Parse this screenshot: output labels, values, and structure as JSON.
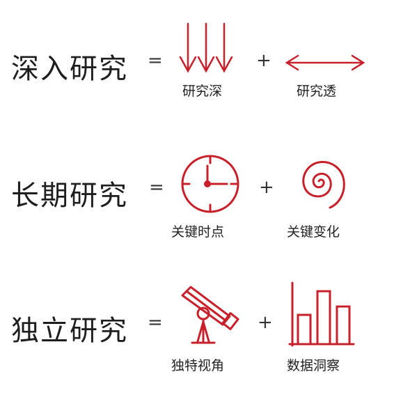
{
  "accent_color": "#c8202a",
  "rows": [
    {
      "term": "深入研究",
      "equals": "=",
      "plus": "+",
      "left": {
        "icon": "three-down-arrows-icon",
        "caption": "研究深"
      },
      "right": {
        "icon": "double-headed-arrow-icon",
        "caption": "研究透"
      }
    },
    {
      "term": "长期研究",
      "equals": "=",
      "plus": "+",
      "left": {
        "icon": "clock-icon",
        "caption": "关键时点"
      },
      "right": {
        "icon": "spiral-icon",
        "caption": "关键变化"
      }
    },
    {
      "term": "独立研究",
      "equals": "=",
      "plus": "+",
      "left": {
        "icon": "telescope-icon",
        "caption": "独特视角"
      },
      "right": {
        "icon": "bar-chart-icon",
        "caption": "数据洞察"
      }
    }
  ]
}
